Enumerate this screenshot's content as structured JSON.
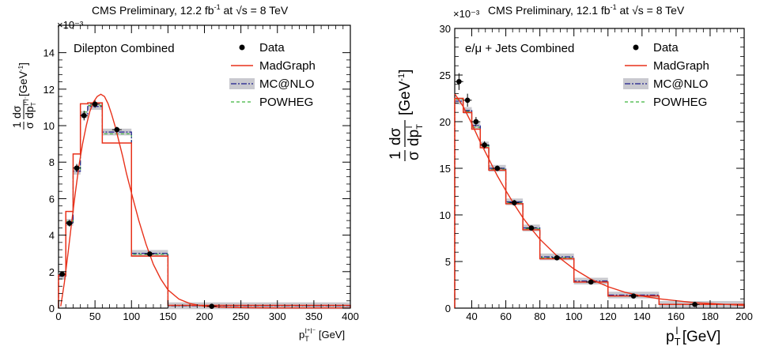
{
  "chart_data": [
    {
      "type": "line",
      "title": "CMS Preliminary, 12.2 fb$^{-1}$ at √s = 8 TeV",
      "title_parts": {
        "main": "CMS Preliminary, 12.2 fb",
        "sup": "-1",
        "mid": " at ",
        "root": "√s",
        "tail": " =  8 TeV"
      },
      "annotation": "Dilepton Combined",
      "xlabel": "p_T^{l+l-} [GeV]",
      "xlabel_parts": {
        "base": "p",
        "sub": "T",
        "sup": "l⁺l⁻",
        "unit": " [GeV]"
      },
      "ylabel_parts": {
        "frac_num": "1",
        "frac_den": "σ",
        "dnum": "dσ",
        "dden": "dp",
        "dsub": "T",
        "dsup": "l⁺l⁻",
        "unit": " [GeV",
        "unitsup": "-1",
        "unitclose": "]"
      },
      "exponent": "×10⁻³",
      "xlim": [
        0,
        400
      ],
      "ylim": [
        0,
        0.0155
      ],
      "yscale_display": 1000,
      "xticks": [
        0,
        50,
        100,
        150,
        200,
        250,
        300,
        350,
        400
      ],
      "yticks": [
        0,
        2,
        4,
        6,
        8,
        10,
        12,
        14
      ],
      "legend": [
        "Data",
        "MadGraph",
        "MC@NLO",
        "POWHEG"
      ],
      "legend_position": "top-right",
      "bin_edges": [
        0,
        10,
        20,
        30,
        40,
        60,
        100,
        150,
        400
      ],
      "series": [
        {
          "name": "Data",
          "kind": "points",
          "x": [
            5,
            15,
            25,
            35,
            50,
            80,
            125,
            210
          ],
          "y": [
            0.00186,
            0.00465,
            0.00768,
            0.01055,
            0.01118,
            0.00978,
            0.00297,
            0.0001
          ],
          "yerr": [
            0.00012,
            0.00018,
            0.00022,
            0.00026,
            0.0002,
            0.00016,
            8e-05,
            2e-05
          ]
        },
        {
          "name": "MadGraph",
          "kind": "step",
          "values": [
            0.0018,
            0.0053,
            0.00845,
            0.0112,
            0.01125,
            0.00905,
            0.00285,
            0.00015
          ]
        },
        {
          "name": "MC@NLO",
          "kind": "step",
          "values": [
            0.00175,
            0.0047,
            0.0075,
            0.0106,
            0.01105,
            0.00965,
            0.003,
            0.00013
          ]
        },
        {
          "name": "POWHEG",
          "kind": "step",
          "values": [
            0.00178,
            0.00475,
            0.0076,
            0.01075,
            0.0111,
            0.00955,
            0.00295,
            0.00014
          ]
        },
        {
          "name": "MadGraph curve",
          "kind": "curve",
          "x": [
            3,
            8,
            13,
            18,
            23,
            28,
            33,
            38,
            43,
            48,
            53,
            58,
            63,
            68,
            73,
            78,
            83,
            88,
            93,
            100,
            110,
            120,
            130,
            140,
            150,
            165,
            180,
            200,
            230,
            260,
            300,
            350,
            400
          ],
          "y": [
            0.0001,
            0.0014,
            0.003,
            0.0047,
            0.0063,
            0.0078,
            0.009,
            0.01,
            0.0108,
            0.0113,
            0.0116,
            0.01172,
            0.0116,
            0.0112,
            0.0106,
            0.0099,
            0.0091,
            0.0083,
            0.0074,
            0.0063,
            0.0048,
            0.0035,
            0.0024,
            0.0016,
            0.001,
            0.0005,
            0.00025,
            0.0001,
            4e-05,
            2e-05,
            1e-05,
            1e-05,
            1e-05
          ]
        }
      ]
    },
    {
      "type": "line",
      "title": "CMS Preliminary, 12.1 fb$^{-1}$ at √s = 8 TeV",
      "title_parts": {
        "main": "CMS Preliminary, 12.1 fb",
        "sup": "-1",
        "mid": " at ",
        "root": "√s",
        "tail": " = 8 TeV"
      },
      "annotation": "e/μ + Jets Combined",
      "xlabel": "p_T^l [GeV]",
      "xlabel_parts": {
        "base": "p",
        "sub": "T",
        "sup": "l",
        "unit": " [GeV]"
      },
      "ylabel_parts": {
        "frac_num": "1",
        "frac_den": "σ",
        "dnum": "dσ",
        "dden": "dp",
        "dsub": "T",
        "dsup": "l",
        "unit": " [GeV",
        "unitsup": "-1",
        "unitclose": "]"
      },
      "exponent": "×10⁻³",
      "xlim": [
        30,
        200
      ],
      "ylim": [
        0,
        0.03
      ],
      "yscale_display": 1000,
      "xticks": [
        40,
        60,
        80,
        100,
        120,
        140,
        160,
        180,
        200
      ],
      "yticks": [
        0,
        5,
        10,
        15,
        20,
        25,
        30
      ],
      "legend": [
        "Data",
        "MadGraph",
        "MC@NLO",
        "POWHEG"
      ],
      "legend_position": "top-right",
      "bin_edges": [
        30,
        35,
        40,
        45,
        50,
        60,
        70,
        80,
        100,
        120,
        150,
        200
      ],
      "series": [
        {
          "name": "Data",
          "kind": "points",
          "x": [
            32.5,
            37.5,
            42.5,
            47.5,
            55,
            65,
            75,
            90,
            110,
            135,
            171
          ],
          "y": [
            0.0243,
            0.0223,
            0.02,
            0.0175,
            0.015,
            0.0113,
            0.0086,
            0.0054,
            0.0028,
            0.0013,
            0.0004
          ],
          "yerr": [
            0.0009,
            0.0007,
            0.0005,
            0.0004,
            0.0003,
            0.0003,
            0.0002,
            0.0002,
            0.0001,
            0.0001,
            5e-05
          ]
        },
        {
          "name": "MadGraph",
          "kind": "step",
          "values": [
            0.0225,
            0.021,
            0.0192,
            0.0172,
            0.0148,
            0.0112,
            0.0084,
            0.0053,
            0.0028,
            0.0013,
            0.0004
          ]
        },
        {
          "name": "MC@NLO",
          "kind": "step",
          "values": [
            0.0222,
            0.0212,
            0.0196,
            0.0175,
            0.015,
            0.0114,
            0.0086,
            0.0055,
            0.0029,
            0.0014,
            0.0004
          ]
        },
        {
          "name": "POWHEG",
          "kind": "step",
          "values": [
            0.0224,
            0.0211,
            0.0194,
            0.0174,
            0.0149,
            0.0113,
            0.0085,
            0.0054,
            0.0028,
            0.0013,
            0.0004
          ]
        },
        {
          "name": "MadGraph curve",
          "kind": "curve",
          "x": [
            30,
            35,
            40,
            45,
            50,
            55,
            60,
            65,
            70,
            75,
            80,
            90,
            100,
            110,
            120,
            130,
            140,
            150,
            160,
            170,
            180,
            190,
            200
          ],
          "y": [
            0.023,
            0.0216,
            0.0198,
            0.0178,
            0.016,
            0.0142,
            0.0126,
            0.0111,
            0.0097,
            0.0085,
            0.0074,
            0.0056,
            0.0042,
            0.0031,
            0.0023,
            0.0017,
            0.0013,
            0.001,
            0.0008,
            0.0006,
            0.0005,
            0.0004,
            0.0003
          ]
        }
      ]
    }
  ],
  "colors": {
    "data": "#000000",
    "madgraph": "#e8311a",
    "mcatnlo": "#1c1c8c",
    "mcatnlo_band": "#c9c9cf",
    "powheg": "#3cb43c",
    "axis": "#000000"
  }
}
